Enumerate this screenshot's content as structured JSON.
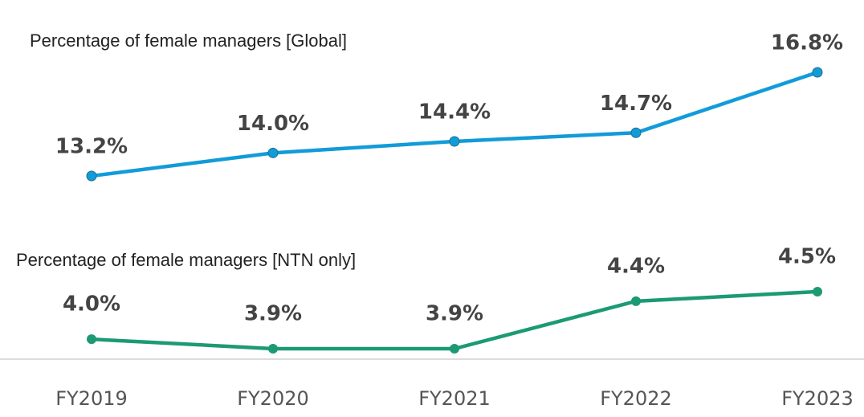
{
  "chart_data": {
    "type": "line",
    "categories": [
      "FY2019",
      "FY2020",
      "FY2021",
      "FY2022",
      "FY2023"
    ],
    "series": [
      {
        "name": "Percentage of female managers [Global]",
        "color": "#129bd9",
        "values": [
          13.2,
          14.0,
          14.4,
          14.7,
          16.8
        ],
        "value_labels": [
          "13.2%",
          "14.0%",
          "14.4%",
          "14.7%",
          "16.8%"
        ]
      },
      {
        "name": "Percentage of female managers [NTN only]",
        "color": "#1b9a73",
        "values": [
          4.0,
          3.9,
          3.9,
          4.4,
          4.5
        ],
        "value_labels": [
          "4.0%",
          "3.9%",
          "3.9%",
          "4.4%",
          "4.5%"
        ]
      }
    ]
  }
}
